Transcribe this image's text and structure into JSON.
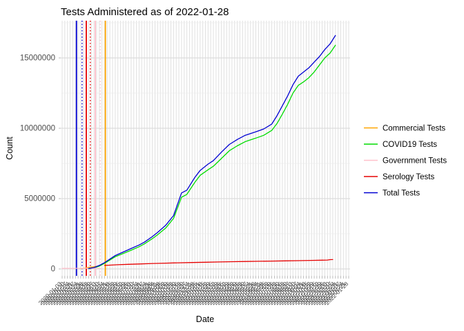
{
  "page": {
    "background": "#ffffff"
  },
  "chart_data": {
    "type": "line",
    "title": "Tests Administered as of 2022-01-28",
    "xlabel": "Date",
    "ylabel": "Count",
    "ylim": [
      0,
      17700000
    ],
    "yticks": [
      0,
      5000000,
      10000000,
      15000000
    ],
    "ytick_labels": [
      "0",
      "5000000",
      "10000000",
      "15000000"
    ],
    "yminor": [
      2500000,
      7500000,
      12500000,
      17500000
    ],
    "x_ticks": {
      "kind": "date",
      "start": "2020-01-03",
      "end": "2022-01-28",
      "step_days": 7,
      "count": 109,
      "labels_rotated_deg": 45,
      "labels_overlap_illegible": true
    },
    "grid": {
      "show": true,
      "major_color": "#dcdcdc",
      "minor_color": "#ebebeb",
      "stripe_color": "#e0e0e0"
    },
    "legend_position": "right",
    "series": [
      {
        "name": "Commercial Tests",
        "color": "#FFA500",
        "style": "solid",
        "points": [
          [
            7,
            20000
          ],
          [
            9,
            80000
          ],
          [
            11,
            130000
          ],
          [
            13,
            180000
          ],
          [
            14,
            200000
          ]
        ]
      },
      {
        "name": "COVID19 Tests",
        "color": "#00DC00",
        "style": "solid",
        "points": [
          [
            10,
            20000
          ],
          [
            12,
            80000
          ],
          [
            14,
            200000
          ],
          [
            16,
            400000
          ],
          [
            18,
            630000
          ],
          [
            20,
            870000
          ],
          [
            23,
            1100000
          ],
          [
            26,
            1330000
          ],
          [
            29,
            1580000
          ],
          [
            31,
            1780000
          ],
          [
            34,
            2150000
          ],
          [
            36,
            2430000
          ],
          [
            39,
            2900000
          ],
          [
            42,
            3600000
          ],
          [
            45,
            5100000
          ],
          [
            47,
            5300000
          ],
          [
            50,
            6150000
          ],
          [
            52,
            6650000
          ],
          [
            55,
            7050000
          ],
          [
            57,
            7300000
          ],
          [
            60,
            7850000
          ],
          [
            63,
            8400000
          ],
          [
            66,
            8750000
          ],
          [
            69,
            9050000
          ],
          [
            73,
            9300000
          ],
          [
            76,
            9500000
          ],
          [
            79,
            9850000
          ],
          [
            81,
            10350000
          ],
          [
            83,
            11000000
          ],
          [
            85,
            11700000
          ],
          [
            87,
            12500000
          ],
          [
            89,
            13050000
          ],
          [
            91,
            13300000
          ],
          [
            93,
            13600000
          ],
          [
            95,
            14000000
          ],
          [
            97,
            14500000
          ],
          [
            99,
            15000000
          ],
          [
            101,
            15350000
          ],
          [
            103,
            15900000
          ]
        ]
      },
      {
        "name": "Government Tests",
        "color": "#FFC0CB",
        "style": "solid",
        "points": [
          [
            0,
            40000
          ],
          [
            4,
            42000
          ],
          [
            8,
            46000
          ],
          [
            11,
            48000
          ],
          [
            14,
            50000
          ]
        ]
      },
      {
        "name": "Serology Tests",
        "color": "#E60000",
        "style": "solid",
        "points": [
          [
            16,
            250000
          ],
          [
            18,
            270000
          ],
          [
            21,
            300000
          ],
          [
            25,
            330000
          ],
          [
            29,
            355000
          ],
          [
            34,
            385000
          ],
          [
            39,
            410000
          ],
          [
            44,
            435000
          ],
          [
            49,
            455000
          ],
          [
            54,
            475000
          ],
          [
            59,
            495000
          ],
          [
            64,
            515000
          ],
          [
            69,
            530000
          ],
          [
            74,
            545000
          ],
          [
            79,
            560000
          ],
          [
            84,
            575000
          ],
          [
            89,
            590000
          ],
          [
            94,
            610000
          ],
          [
            98,
            625000
          ],
          [
            100,
            630000
          ],
          [
            101,
            660000
          ],
          [
            102,
            665000
          ]
        ]
      },
      {
        "name": "Total Tests",
        "color": "#0000D2",
        "style": "solid",
        "points": [
          [
            10,
            30000
          ],
          [
            12,
            100000
          ],
          [
            14,
            250000
          ],
          [
            16,
            450000
          ],
          [
            18,
            700000
          ],
          [
            20,
            950000
          ],
          [
            23,
            1200000
          ],
          [
            26,
            1450000
          ],
          [
            29,
            1700000
          ],
          [
            31,
            1900000
          ],
          [
            34,
            2300000
          ],
          [
            36,
            2600000
          ],
          [
            39,
            3100000
          ],
          [
            42,
            3800000
          ],
          [
            45,
            5400000
          ],
          [
            47,
            5600000
          ],
          [
            50,
            6500000
          ],
          [
            52,
            7000000
          ],
          [
            55,
            7450000
          ],
          [
            57,
            7700000
          ],
          [
            60,
            8300000
          ],
          [
            63,
            8850000
          ],
          [
            66,
            9200000
          ],
          [
            69,
            9500000
          ],
          [
            73,
            9750000
          ],
          [
            76,
            9950000
          ],
          [
            79,
            10300000
          ],
          [
            81,
            10900000
          ],
          [
            83,
            11600000
          ],
          [
            85,
            12300000
          ],
          [
            87,
            13100000
          ],
          [
            89,
            13700000
          ],
          [
            91,
            14000000
          ],
          [
            93,
            14300000
          ],
          [
            95,
            14700000
          ],
          [
            97,
            15100000
          ],
          [
            99,
            15600000
          ],
          [
            101,
            16000000
          ],
          [
            103,
            16600000
          ]
        ]
      }
    ],
    "vlines": [
      {
        "color": "#0000D2",
        "style": "solid",
        "x_index": 5.4
      },
      {
        "color": "#0000D2",
        "style": "dotted",
        "x_index": 7.5
      },
      {
        "color": "#E60000",
        "style": "solid",
        "x_index": 9.1
      },
      {
        "color": "#E60000",
        "style": "dotted",
        "x_index": 10.6
      },
      {
        "color": "#FFC0CB",
        "style": "solid",
        "x_index": 12.5
      },
      {
        "color": "#FFC0CB",
        "style": "dotted",
        "x_index": 14.4
      },
      {
        "color": "#FFA500",
        "style": "solid",
        "x_index": 16.3
      }
    ]
  }
}
